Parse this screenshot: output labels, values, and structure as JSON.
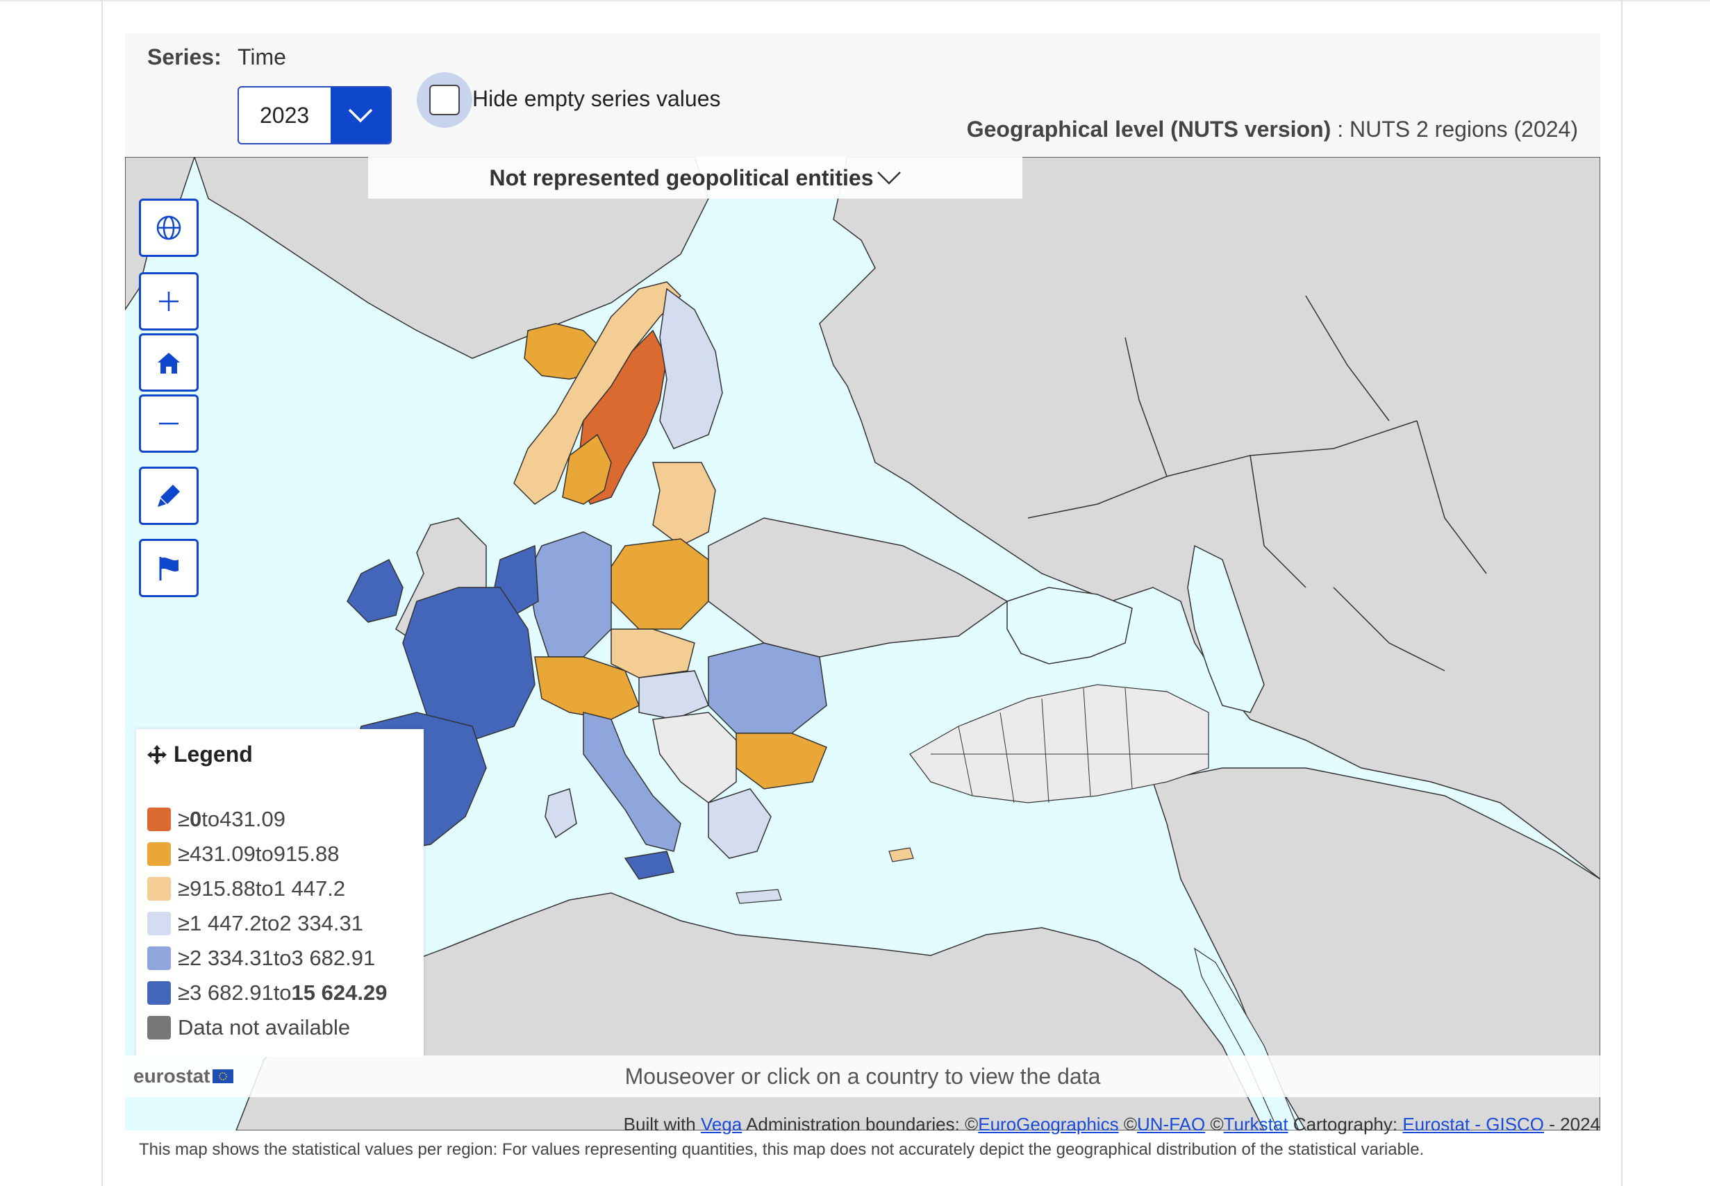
{
  "controls": {
    "series_label": "Series:",
    "series_value": "Time",
    "year": "2023",
    "hide_empty_label": "Hide empty series values",
    "geo_level_label": "Geographical level  (NUTS version)",
    "geo_level_value": " : NUTS 2 regions (2024)"
  },
  "map": {
    "not_represented": "Not represented geopolitical entities",
    "mouseover_hint": "Mouseover or click on a country to view the data",
    "colors": {
      "sea": "#e3fcff",
      "land_other": "#d9d9d9",
      "non_eu_region": "#ebebeb",
      "class1": "#db6a31",
      "class2": "#e8a737",
      "class3": "#f4cd94",
      "class4": "#d4dcef",
      "class5": "#8ea6dc",
      "class6": "#4466ba",
      "na": "#777777"
    }
  },
  "toolbar": {
    "buttons": [
      "globe-icon",
      "zoom-in-icon",
      "home-icon",
      "zoom-out-icon",
      "pen-icon",
      "flag-icon"
    ]
  },
  "legend": {
    "title": "Legend",
    "items": [
      {
        "prefix": "≥ ",
        "low": "0",
        "mid": " to ",
        "high": "431.09",
        "color": "#db6a31"
      },
      {
        "prefix": "≥ ",
        "low": "431.09",
        "mid": " to ",
        "high": "915.88",
        "color": "#e8a737"
      },
      {
        "prefix": "≥ ",
        "low": "915.88",
        "mid": " to ",
        "high": "1 447.2",
        "color": "#f4cd94"
      },
      {
        "prefix": "≥ ",
        "low": "1 447.2",
        "mid": " to ",
        "high": "2 334.31",
        "color": "#d4dcef"
      },
      {
        "prefix": "≥ ",
        "low": "2 334.31",
        "mid": " to ",
        "high": "3 682.91",
        "color": "#8ea6dc"
      },
      {
        "prefix": "≥ ",
        "low": "3 682.91",
        "mid": " to ",
        "high": "15 624.29",
        "color": "#4466ba"
      }
    ],
    "na_label": "Data not available",
    "na_color": "#777777"
  },
  "footer": {
    "logo_text": "eurostat",
    "built_with": "Built with ",
    "vega": "Vega",
    "admin": " Administration boundaries: ©",
    "eurogeo": "EuroGeographics",
    "copy1": " ©",
    "unfao": "UN-FAO",
    "copy2": " ©",
    "turkstat": "Turkstat",
    "carto": " Cartography: ",
    "gisco": "Eurostat - GISCO",
    "year": " - 2024",
    "disclaimer": "This map shows the statistical values per region: For values representing quantities, this map does not accurately depict the geographical distribution of the statistical variable."
  }
}
